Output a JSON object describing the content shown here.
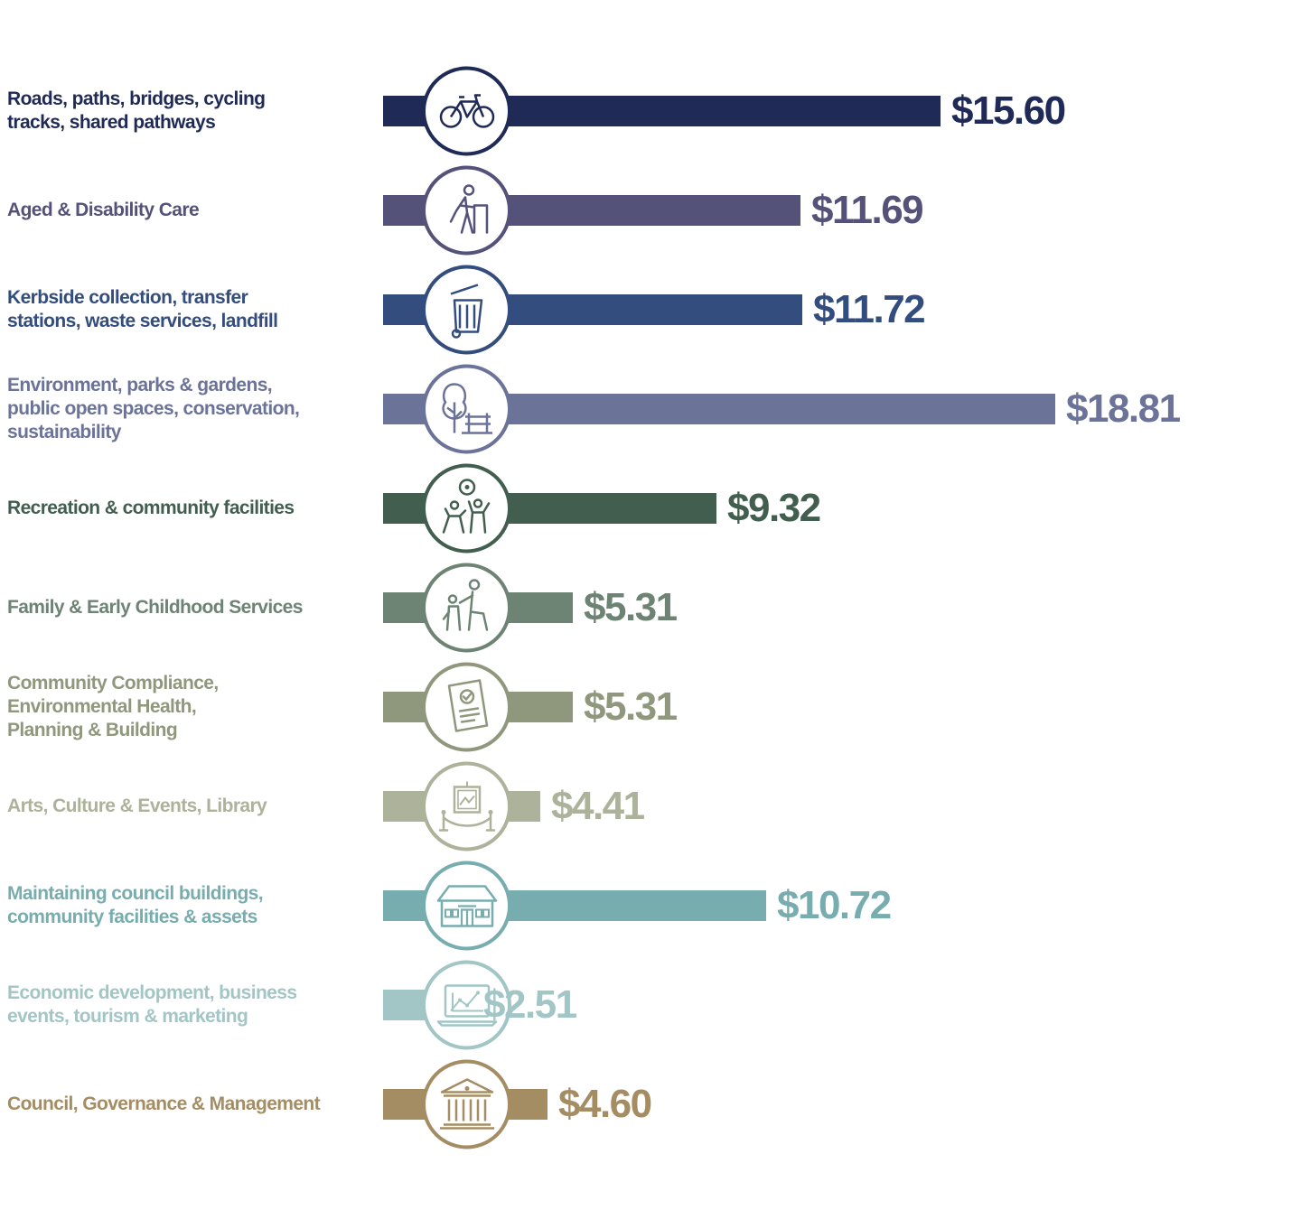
{
  "chart_data": {
    "type": "bar",
    "orientation": "horizontal",
    "xlim": [
      0,
      18.81
    ],
    "grid": false,
    "categories": [
      "Roads, paths, bridges, cycling\ntracks, shared pathways",
      "Aged & Disability Care",
      "Kerbside collection, transfer\nstations, waste services, landfill",
      "Environment, parks & gardens,\npublic open spaces, conservation,\nsustainability",
      "Recreation & community facilities",
      "Family & Early Childhood Services",
      "Community Compliance,\nEnvironmental Health,\nPlanning & Building",
      "Arts, Culture & Events, Library",
      "Maintaining council buildings,\ncommunity facilities & assets",
      "Economic development, business\nevents, tourism & marketing",
      "Council, Governance & Management"
    ],
    "values": [
      15.6,
      11.69,
      11.72,
      18.81,
      9.32,
      5.31,
      5.31,
      4.41,
      10.72,
      2.51,
      4.6
    ],
    "value_labels": [
      "$15.60",
      "$11.69",
      "$11.72",
      "$18.81",
      "$9.32",
      "$5.31",
      "$5.31",
      "$4.41",
      "$10.72",
      "$2.51",
      "$4.60"
    ],
    "colors": [
      "#1f2a56",
      "#55527a",
      "#334d7e",
      "#6c7399",
      "#425e4e",
      "#6d8374",
      "#8f987c",
      "#adb29a",
      "#78adb0",
      "#a2c5c6",
      "#a58d63"
    ],
    "icons": [
      "bicycle-icon",
      "elderly-walker-icon",
      "wheelie-bin-icon",
      "tree-bench-icon",
      "sports-people-icon",
      "parent-child-icon",
      "certificate-document-icon",
      "art-exhibit-icon",
      "council-building-icon",
      "laptop-chart-icon",
      "government-building-icon"
    ]
  }
}
